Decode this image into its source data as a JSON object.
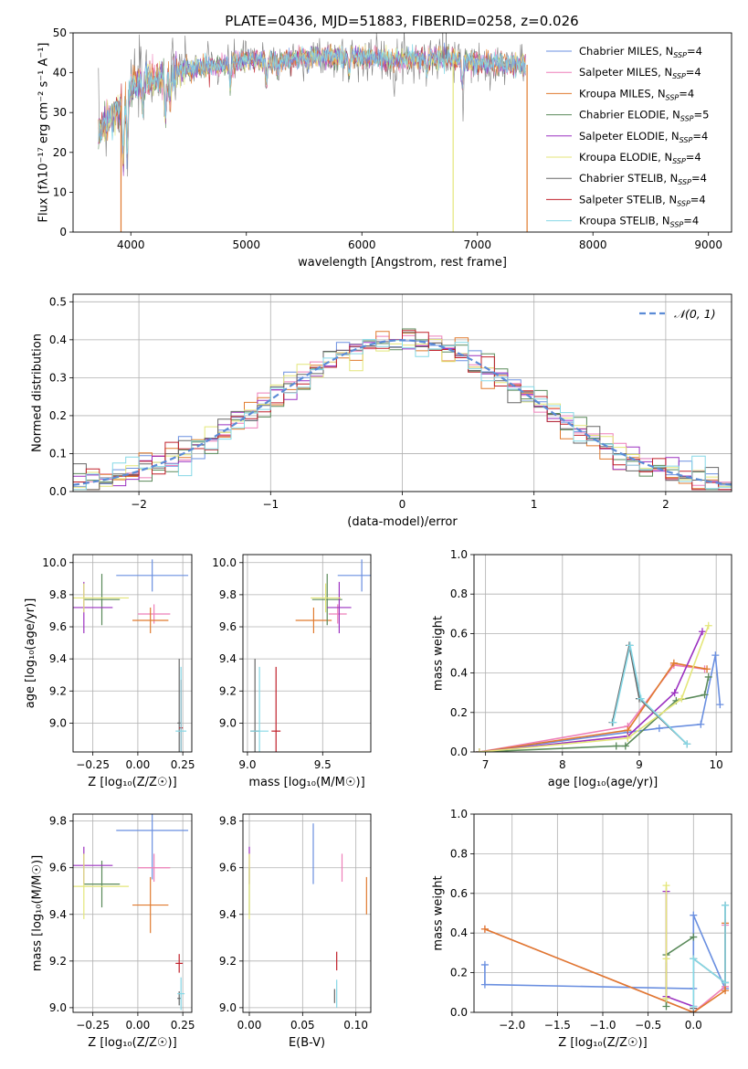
{
  "figure_title": "PLATE=0436, MJD=51883, FIBERID=0258, z=0.026",
  "colors": {
    "chabrier_miles": "#6a8fe0",
    "salpeter_miles": "#ee7fb9",
    "kroupa_miles": "#e07a2e",
    "chabrier_elodie": "#5a8a5a",
    "salpeter_elodie": "#9b30c0",
    "kroupa_elodie": "#e4e67a",
    "chabrier_stelib": "#666666",
    "salpeter_stelib": "#c0202a",
    "kroupa_stelib": "#86d8e6"
  },
  "chart_data": [
    {
      "id": "spectrum",
      "type": "line",
      "title": "PLATE=0436, MJD=51883, FIBERID=0258, z=0.026",
      "xlabel": "wavelength [Angstrom, rest frame]",
      "ylabel": "Flux [fλ10⁻¹⁷ erg cm⁻² s⁻¹ A⁻¹]",
      "xlim": [
        3500,
        9200
      ],
      "ylim": [
        0,
        50
      ],
      "xticks": [
        "4000",
        "5000",
        "6000",
        "7000",
        "8000",
        "9000"
      ],
      "yticks": [
        "0",
        "10",
        "20",
        "30",
        "40",
        "50"
      ],
      "grid": false,
      "legend": "right",
      "series": [
        {
          "name": "Chabrier MILES, N",
          "sub": "SSP",
          "suffix": "=4",
          "color_key": "chabrier_miles"
        },
        {
          "name": "Salpeter MILES, N",
          "sub": "SSP",
          "suffix": "=4",
          "color_key": "salpeter_miles"
        },
        {
          "name": "Kroupa MILES, N",
          "sub": "SSP",
          "suffix": "=4",
          "color_key": "kroupa_miles"
        },
        {
          "name": "Chabrier ELODIE, N",
          "sub": "SSP",
          "suffix": "=5",
          "color_key": "chabrier_elodie"
        },
        {
          "name": "Salpeter ELODIE, N",
          "sub": "SSP",
          "suffix": "=4",
          "color_key": "salpeter_elodie"
        },
        {
          "name": "Kroupa ELODIE, N",
          "sub": "SSP",
          "suffix": "=4",
          "color_key": "kroupa_elodie"
        },
        {
          "name": "Chabrier STELIB, N",
          "sub": "SSP",
          "suffix": "=4",
          "color_key": "chabrier_stelib"
        },
        {
          "name": "Salpeter STELIB, N",
          "sub": "SSP",
          "suffix": "=4",
          "color_key": "salpeter_stelib"
        },
        {
          "name": "Kroupa STELIB, N",
          "sub": "SSP",
          "suffix": "=4",
          "color_key": "kroupa_stelib"
        }
      ],
      "continuum": [
        [
          3720,
          25
        ],
        [
          3800,
          28
        ],
        [
          3900,
          31
        ],
        [
          4000,
          36
        ],
        [
          4100,
          38
        ],
        [
          4300,
          39
        ],
        [
          4500,
          41
        ],
        [
          4800,
          42
        ],
        [
          5000,
          43
        ],
        [
          5300,
          43
        ],
        [
          5600,
          44
        ],
        [
          6000,
          44
        ],
        [
          6300,
          43
        ],
        [
          6600,
          44
        ],
        [
          6900,
          43
        ],
        [
          7200,
          42
        ],
        [
          7420,
          42
        ]
      ],
      "absorption_lines": [
        [
          3934,
          15
        ],
        [
          3969,
          14
        ],
        [
          4102,
          6
        ],
        [
          4300,
          10
        ],
        [
          4340,
          7
        ],
        [
          4861,
          5
        ],
        [
          5175,
          5
        ],
        [
          5270,
          3
        ],
        [
          5890,
          5
        ],
        [
          6563,
          4
        ],
        [
          6870,
          6
        ],
        [
          7600,
          3
        ]
      ],
      "drops": [
        {
          "x": 3915,
          "color_key": "kroupa_miles"
        },
        {
          "x": 6790,
          "color_key": "kroupa_elodie"
        },
        {
          "x": 7430,
          "color_key": "kroupa_miles"
        }
      ],
      "spikes": [
        {
          "x": 6700,
          "y": 51
        },
        {
          "x": 6730,
          "y": 51
        }
      ]
    },
    {
      "id": "residuals",
      "type": "histogram",
      "xlabel": "(data-model)/error",
      "ylabel": "Normed distribution",
      "xlim": [
        -2.5,
        2.5
      ],
      "ylim": [
        0,
        0.52
      ],
      "xticks": [
        "-2",
        "-1",
        "0",
        "1",
        "2"
      ],
      "yticks": [
        "0.0",
        "0.1",
        "0.2",
        "0.3",
        "0.4",
        "0.5"
      ],
      "grid": true,
      "bin_width": 0.1,
      "legend": "top-right",
      "legend_label": "𝒩(0, 1)",
      "reference": "normal(0, 1)"
    },
    {
      "id": "age_vs_Z",
      "type": "errorbar",
      "xlabel": "Z [log₁₀(Z/Z☉)]",
      "ylabel": "age  [log₁₀(age/yr)]",
      "xlim": [
        -0.36,
        0.3
      ],
      "ylim": [
        8.82,
        10.05
      ],
      "xticks": [
        "-0.25",
        "0.00",
        "0.25"
      ],
      "yticks": [
        "9.0",
        "9.2",
        "9.4",
        "9.6",
        "9.8",
        "10.0"
      ],
      "grid": true,
      "points": [
        {
          "color_key": "chabrier_miles",
          "x": 0.08,
          "xerr": 0.2,
          "y": 9.92,
          "yerr": 0.1
        },
        {
          "color_key": "salpeter_miles",
          "x": 0.09,
          "xerr": 0.09,
          "y": 9.68,
          "yerr": 0.06
        },
        {
          "color_key": "kroupa_miles",
          "x": 0.07,
          "xerr": 0.1,
          "y": 9.64,
          "yerr": 0.08
        },
        {
          "color_key": "chabrier_elodie",
          "x": -0.2,
          "xerr": 0.1,
          "y": 9.77,
          "yerr": 0.16
        },
        {
          "color_key": "salpeter_elodie",
          "x": -0.3,
          "xerr": 0.16,
          "y": 9.72,
          "yerr": 0.16
        },
        {
          "color_key": "kroupa_elodie",
          "x": -0.3,
          "xerr": 0.25,
          "y": 9.78,
          "yerr": 0.09
        },
        {
          "color_key": "chabrier_stelib",
          "x": 0.23,
          "xerr": 0.01,
          "y": 9.0,
          "yerr": 0.4
        },
        {
          "color_key": "salpeter_stelib",
          "x": 0.24,
          "xerr": 0.01,
          "y": 8.97,
          "yerr": 0.3
        },
        {
          "color_key": "kroupa_stelib",
          "x": 0.24,
          "xerr": 0.03,
          "y": 8.95,
          "yerr": 0.4
        }
      ]
    },
    {
      "id": "age_vs_mass",
      "type": "errorbar",
      "xlabel": "mass [log₁₀(M/M☉)]",
      "ylabel": "",
      "xlim": [
        8.97,
        9.82
      ],
      "ylim": [
        8.82,
        10.05
      ],
      "xticks": [
        "9.0",
        "9.5"
      ],
      "yticks": [
        "9.0",
        "9.2",
        "9.4",
        "9.6",
        "9.8",
        "10.0"
      ],
      "grid": true,
      "points": [
        {
          "color_key": "chabrier_miles",
          "x": 9.76,
          "xerr": 0.16,
          "y": 9.92,
          "yerr": 0.1
        },
        {
          "color_key": "salpeter_miles",
          "x": 9.6,
          "xerr": 0.06,
          "y": 9.68,
          "yerr": 0.06
        },
        {
          "color_key": "kroupa_miles",
          "x": 9.44,
          "xerr": 0.12,
          "y": 9.64,
          "yerr": 0.08
        },
        {
          "color_key": "chabrier_elodie",
          "x": 9.53,
          "xerr": 0.1,
          "y": 9.77,
          "yerr": 0.16
        },
        {
          "color_key": "salpeter_elodie",
          "x": 9.61,
          "xerr": 0.08,
          "y": 9.72,
          "yerr": 0.16
        },
        {
          "color_key": "kroupa_elodie",
          "x": 9.52,
          "xerr": 0.1,
          "y": 9.78,
          "yerr": 0.09
        },
        {
          "color_key": "chabrier_stelib",
          "x": 9.05,
          "xerr": 0.03,
          "y": 8.95,
          "yerr": 0.45
        },
        {
          "color_key": "salpeter_stelib",
          "x": 9.19,
          "xerr": 0.03,
          "y": 8.95,
          "yerr": 0.4
        },
        {
          "color_key": "kroupa_stelib",
          "x": 9.08,
          "xerr": 0.06,
          "y": 8.95,
          "yerr": 0.4
        }
      ]
    },
    {
      "id": "weight_vs_age",
      "type": "line",
      "xlabel": "age  [log₁₀(age/yr)]",
      "ylabel": "mass weight",
      "xlim": [
        6.85,
        10.2
      ],
      "ylim": [
        0,
        1
      ],
      "xticks": [
        "7",
        "8",
        "9",
        "10"
      ],
      "yticks": [
        "0.0",
        "0.2",
        "0.4",
        "0.6",
        "0.8",
        "1.0"
      ],
      "grid": true,
      "series": [
        {
          "color_key": "chabrier_miles",
          "x": [
            6.92,
            8.85,
            9.26,
            9.8,
            9.99,
            10.05
          ],
          "y": [
            0.0,
            0.1,
            0.12,
            0.14,
            0.49,
            0.24
          ]
        },
        {
          "color_key": "salpeter_miles",
          "x": [
            6.92,
            8.85,
            9.45,
            9.85
          ],
          "y": [
            0.0,
            0.13,
            0.44,
            0.42
          ]
        },
        {
          "color_key": "kroupa_miles",
          "x": [
            6.92,
            8.85,
            9.45,
            9.88
          ],
          "y": [
            0.0,
            0.11,
            0.45,
            0.42
          ]
        },
        {
          "color_key": "chabrier_elodie",
          "x": [
            6.92,
            8.7,
            8.82,
            9.48,
            9.85,
            9.9
          ],
          "y": [
            0.0,
            0.03,
            0.03,
            0.26,
            0.29,
            0.38
          ]
        },
        {
          "color_key": "salpeter_elodie",
          "x": [
            6.92,
            8.85,
            9.46,
            9.82
          ],
          "y": [
            0.0,
            0.08,
            0.3,
            0.61
          ]
        },
        {
          "color_key": "kroupa_elodie",
          "x": [
            6.92,
            8.85,
            9.55,
            9.9
          ],
          "y": [
            0.0,
            0.07,
            0.27,
            0.64
          ]
        },
        {
          "color_key": "chabrier_stelib",
          "x": [
            8.65,
            8.87,
            9.0,
            9.62
          ],
          "y": [
            0.15,
            0.54,
            0.27,
            0.04
          ]
        },
        {
          "color_key": "kroupa_stelib",
          "x": [
            8.66,
            8.88,
            9.02,
            9.62
          ],
          "y": [
            0.15,
            0.54,
            0.27,
            0.04
          ]
        }
      ]
    },
    {
      "id": "mass_vs_Z",
      "type": "errorbar",
      "xlabel": "Z [log₁₀(Z/Z☉)]",
      "ylabel": "mass [log₁₀(M/M☉)]",
      "xlim": [
        -0.36,
        0.3
      ],
      "ylim": [
        8.98,
        9.83
      ],
      "xticks": [
        "-0.25",
        "0.00",
        "0.25"
      ],
      "yticks": [
        "9.0",
        "9.2",
        "9.4",
        "9.6",
        "9.8"
      ],
      "grid": true,
      "points": [
        {
          "color_key": "chabrier_miles",
          "x": 0.08,
          "xerr": 0.2,
          "y": 9.76,
          "yerr": 0.21
        },
        {
          "color_key": "salpeter_miles",
          "x": 0.09,
          "xerr": 0.09,
          "y": 9.6,
          "yerr": 0.06
        },
        {
          "color_key": "kroupa_miles",
          "x": 0.07,
          "xerr": 0.1,
          "y": 9.44,
          "yerr": 0.12
        },
        {
          "color_key": "chabrier_elodie",
          "x": -0.2,
          "xerr": 0.1,
          "y": 9.53,
          "yerr": 0.1
        },
        {
          "color_key": "salpeter_elodie",
          "x": -0.3,
          "xerr": 0.16,
          "y": 9.61,
          "yerr": 0.08
        },
        {
          "color_key": "kroupa_elodie",
          "x": -0.3,
          "xerr": 0.25,
          "y": 9.52,
          "yerr": 0.14
        },
        {
          "color_key": "chabrier_stelib",
          "x": 0.23,
          "xerr": 0.01,
          "y": 9.04,
          "yerr": 0.03
        },
        {
          "color_key": "salpeter_stelib",
          "x": 0.23,
          "xerr": 0.02,
          "y": 9.19,
          "yerr": 0.04
        },
        {
          "color_key": "kroupa_stelib",
          "x": 0.24,
          "xerr": 0.02,
          "y": 9.06,
          "yerr": 0.07
        }
      ]
    },
    {
      "id": "mass_vs_ebv",
      "type": "errorbar",
      "xlabel": "E(B-V)",
      "ylabel": "",
      "xlim": [
        -0.006,
        0.114
      ],
      "ylim": [
        8.98,
        9.83
      ],
      "xticks": [
        "0.00",
        "0.05",
        "0.10"
      ],
      "yticks": [
        "9.0",
        "9.2",
        "9.4",
        "9.6",
        "9.8"
      ],
      "grid": true,
      "points": [
        {
          "color_key": "chabrier_miles",
          "x": 0.06,
          "xerr": 0,
          "y": 9.66,
          "yerr": 0.13
        },
        {
          "color_key": "salpeter_miles",
          "x": 0.087,
          "xerr": 0,
          "y": 9.6,
          "yerr": 0.06
        },
        {
          "color_key": "kroupa_miles",
          "x": 0.11,
          "xerr": 0,
          "y": 9.48,
          "yerr": 0.08
        },
        {
          "color_key": "chabrier_elodie",
          "x": 0.0,
          "xerr": 0,
          "y": 9.5,
          "yerr": 0.1
        },
        {
          "color_key": "salpeter_elodie",
          "x": 0.0,
          "xerr": 0,
          "y": 9.61,
          "yerr": 0.08
        },
        {
          "color_key": "kroupa_elodie",
          "x": 0.0,
          "xerr": 0,
          "y": 9.52,
          "yerr": 0.14
        },
        {
          "color_key": "chabrier_stelib",
          "x": 0.08,
          "xerr": 0,
          "y": 9.05,
          "yerr": 0.03
        },
        {
          "color_key": "salpeter_stelib",
          "x": 0.082,
          "xerr": 0,
          "y": 9.2,
          "yerr": 0.04
        },
        {
          "color_key": "kroupa_stelib",
          "x": 0.082,
          "xerr": 0,
          "y": 9.06,
          "yerr": 0.06
        }
      ]
    },
    {
      "id": "weight_vs_Z",
      "type": "line",
      "xlabel": "Z [log₁₀(Z/Z☉)]",
      "ylabel": "mass weight",
      "xlim": [
        -2.42,
        0.42
      ],
      "ylim": [
        0,
        1
      ],
      "xticks": [
        "-2.0",
        "-1.5",
        "-1.0",
        "-0.5",
        "0.0"
      ],
      "yticks": [
        "0.0",
        "0.2",
        "0.4",
        "0.6",
        "0.8",
        "1.0"
      ],
      "grid": true,
      "series": [
        {
          "color_key": "chabrier_miles",
          "x": [
            -2.3,
            -2.3,
            0.0,
            0.0,
            0.35
          ],
          "y": [
            0.24,
            0.14,
            0.12,
            0.49,
            0.12
          ]
        },
        {
          "color_key": "salpeter_miles",
          "x": [
            -2.3,
            0.0,
            0.35,
            0.35
          ],
          "y": [
            0.42,
            0.0,
            0.13,
            0.44
          ]
        },
        {
          "color_key": "kroupa_miles",
          "x": [
            -2.3,
            0.0,
            0.35,
            0.35
          ],
          "y": [
            0.42,
            0.0,
            0.11,
            0.45
          ]
        },
        {
          "color_key": "chabrier_elodie",
          "x": [
            -0.3,
            -0.3,
            0.0
          ],
          "y": [
            0.03,
            0.29,
            0.38
          ]
        },
        {
          "color_key": "salpeter_elodie",
          "x": [
            -0.3,
            -0.3,
            0.0
          ],
          "y": [
            0.61,
            0.08,
            0.03
          ]
        },
        {
          "color_key": "kroupa_elodie",
          "x": [
            -0.3,
            -0.3,
            -0.3
          ],
          "y": [
            0.64,
            0.07,
            0.27
          ]
        },
        {
          "color_key": "chabrier_stelib",
          "x": [
            0.0,
            0.0,
            0.35,
            0.35
          ],
          "y": [
            0.02,
            0.27,
            0.15,
            0.54
          ]
        },
        {
          "color_key": "kroupa_stelib",
          "x": [
            0.0,
            0.0,
            0.35,
            0.35
          ],
          "y": [
            0.03,
            0.27,
            0.15,
            0.54
          ]
        }
      ]
    }
  ]
}
